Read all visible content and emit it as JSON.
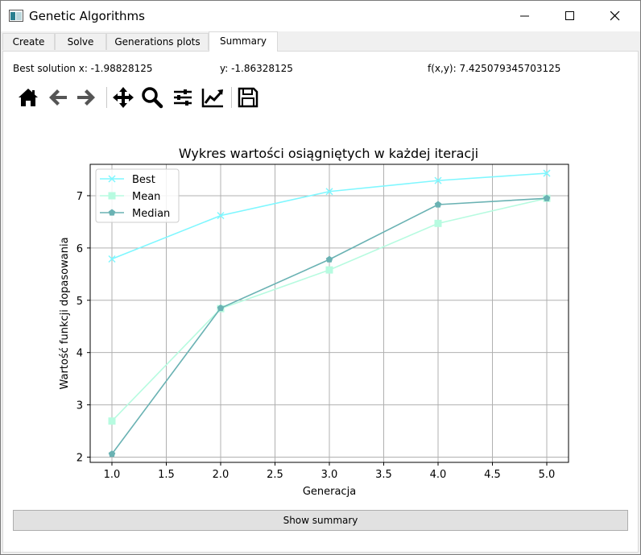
{
  "window": {
    "title": "Genetic Algorithms"
  },
  "tabs": [
    {
      "label": "Create"
    },
    {
      "label": "Solve"
    },
    {
      "label": "Generations plots"
    },
    {
      "label": "Summary",
      "active": true
    }
  ],
  "info": {
    "best_x": "Best solution x: -1.98828125",
    "best_y": "y: -1.86328125",
    "fxy": "f(x,y): 7.425079345703125"
  },
  "toolbar": {
    "icons": [
      "home-icon",
      "back-arrow-icon",
      "forward-arrow-icon",
      "pan-icon",
      "zoom-icon",
      "subplots-icon",
      "edit-axes-icon",
      "save-icon"
    ]
  },
  "colors": {
    "best": "#7ff7ff",
    "mean": "#b7fbe0",
    "median": "#6ab2b3"
  },
  "chart_data": {
    "type": "line",
    "title": "Wykres wartości osiągniętych w każdej iteracji",
    "xlabel": "Generacja",
    "ylabel": "Wartość funkcji dopasowania",
    "xlim": [
      0.8,
      5.2
    ],
    "ylim": [
      1.9,
      7.6
    ],
    "xticks": [
      "1.0",
      "1.5",
      "2.0",
      "2.5",
      "3.0",
      "3.5",
      "4.0",
      "4.5",
      "5.0"
    ],
    "yticks": [
      "2",
      "3",
      "4",
      "5",
      "6",
      "7"
    ],
    "grid": true,
    "legend_position": "top-left",
    "x": [
      1,
      2,
      3,
      4,
      5
    ],
    "series": [
      {
        "name": "Best",
        "marker": "x",
        "values": [
          5.79,
          6.62,
          7.08,
          7.29,
          7.43
        ]
      },
      {
        "name": "Mean",
        "marker": "square",
        "values": [
          2.69,
          4.84,
          5.58,
          6.47,
          6.95
        ]
      },
      {
        "name": "Median",
        "marker": "pentagon",
        "values": [
          2.06,
          4.85,
          5.78,
          6.83,
          6.95
        ]
      }
    ]
  },
  "summary_button": {
    "label": "Show summary"
  }
}
